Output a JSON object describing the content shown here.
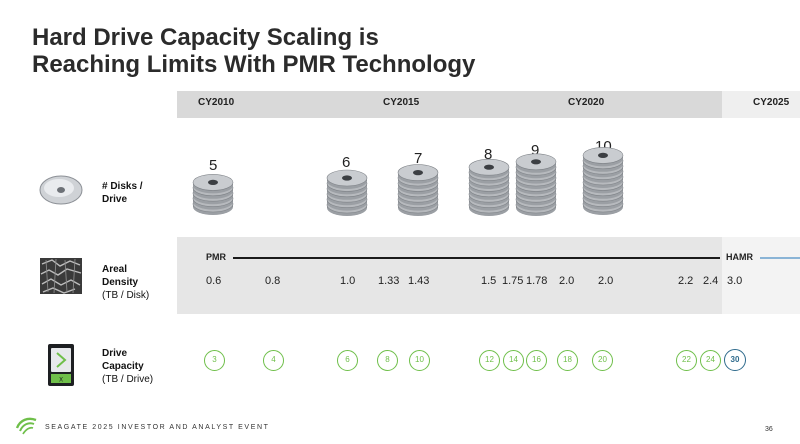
{
  "title": {
    "line1": "Hard Drive Capacity Scaling is",
    "line2": "Reaching Limits With PMR Technology"
  },
  "timeline": {
    "years": [
      "CY2010",
      "CY2015",
      "CY2020",
      "CY2025"
    ]
  },
  "disks": {
    "label_line1": "# Disks /",
    "label_line2": "Drive",
    "counts": [
      "5",
      "6",
      "7",
      "8",
      "9",
      "10"
    ]
  },
  "density": {
    "label_line1": "Areal",
    "label_line2": "Density",
    "label_line3": "(TB / Disk)",
    "pmr_label": "PMR",
    "hamr_label": "HAMR",
    "values": [
      "0.6",
      "0.8",
      "1.0",
      "1.33",
      "1.43",
      "1.5",
      "1.75",
      "1.78",
      "2.0",
      "2.0",
      "2.2",
      "2.4",
      "3.0"
    ]
  },
  "capacity": {
    "label_line1": "Drive",
    "label_line2": "Capacity",
    "label_line3": "(TB / Drive)",
    "values": [
      "3",
      "4",
      "6",
      "8",
      "10",
      "12",
      "14",
      "16",
      "18",
      "20",
      "22",
      "24"
    ],
    "hamr_value": "30"
  },
  "colors": {
    "pmr_green": "#6fbf4a",
    "hamr_blue": "#2e6a8c",
    "brand_green": "#6fbf4a"
  },
  "footer": {
    "text": "SEAGATE 2025 INVESTOR AND ANALYST EVENT",
    "page": "36"
  }
}
